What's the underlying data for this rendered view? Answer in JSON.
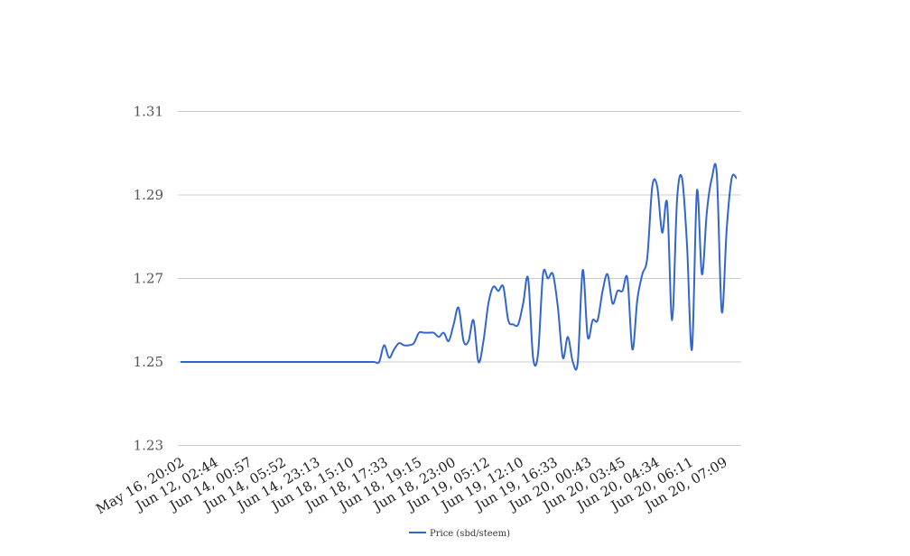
{
  "chart_data": {
    "type": "line",
    "title": "",
    "xlabel": "",
    "ylabel": "",
    "ylim": [
      1.23,
      1.31
    ],
    "yticks": [
      "1.31",
      "1.29",
      "1.27",
      "1.25",
      "1.23"
    ],
    "grid": true,
    "legend_position": "bottom-center",
    "x_tick_labels": [
      "May 16, 20:02",
      "Jun 12, 02:44",
      "Jun 14, 00:57",
      "Jun 14, 05:52",
      "Jun 14, 23:13",
      "Jun 18, 15:10",
      "Jun 18, 17:33",
      "Jun 18, 19:15",
      "Jun 18, 23:00",
      "Jun 19, 05:12",
      "Jun 19, 12:10",
      "Jun 19, 16:33",
      "Jun 20, 00:43",
      "Jun 20, 03:45",
      "Jun 20, 04:34",
      "Jun 20, 06:11",
      "Jun 20, 07:09"
    ],
    "series": [
      {
        "name": "Price (sbd/steem)",
        "color": "#3366cc",
        "values": [
          1.25,
          1.25,
          1.25,
          1.25,
          1.25,
          1.25,
          1.25,
          1.25,
          1.25,
          1.25,
          1.25,
          1.25,
          1.25,
          1.25,
          1.25,
          1.25,
          1.25,
          1.25,
          1.25,
          1.25,
          1.25,
          1.25,
          1.25,
          1.25,
          1.25,
          1.25,
          1.25,
          1.25,
          1.25,
          1.25,
          1.25,
          1.25,
          1.25,
          1.25,
          1.25,
          1.25,
          1.25,
          1.25,
          1.25,
          1.25,
          1.25,
          1.254,
          1.251,
          1.253,
          1.2545,
          1.254,
          1.254,
          1.2545,
          1.257,
          1.257,
          1.257,
          1.257,
          1.256,
          1.257,
          1.255,
          1.259,
          1.263,
          1.255,
          1.255,
          1.26,
          1.25,
          1.255,
          1.264,
          1.268,
          1.267,
          1.268,
          1.26,
          1.259,
          1.259,
          1.264,
          1.27,
          1.251,
          1.252,
          1.271,
          1.27,
          1.271,
          1.263,
          1.251,
          1.256,
          1.25,
          1.25,
          1.272,
          1.256,
          1.26,
          1.26,
          1.267,
          1.271,
          1.264,
          1.267,
          1.267,
          1.27,
          1.253,
          1.265,
          1.271,
          1.275,
          1.292,
          1.292,
          1.281,
          1.288,
          1.26,
          1.289,
          1.294,
          1.278,
          1.253,
          1.291,
          1.271,
          1.286,
          1.294,
          1.295,
          1.262,
          1.282,
          1.294,
          1.294
        ]
      }
    ]
  }
}
